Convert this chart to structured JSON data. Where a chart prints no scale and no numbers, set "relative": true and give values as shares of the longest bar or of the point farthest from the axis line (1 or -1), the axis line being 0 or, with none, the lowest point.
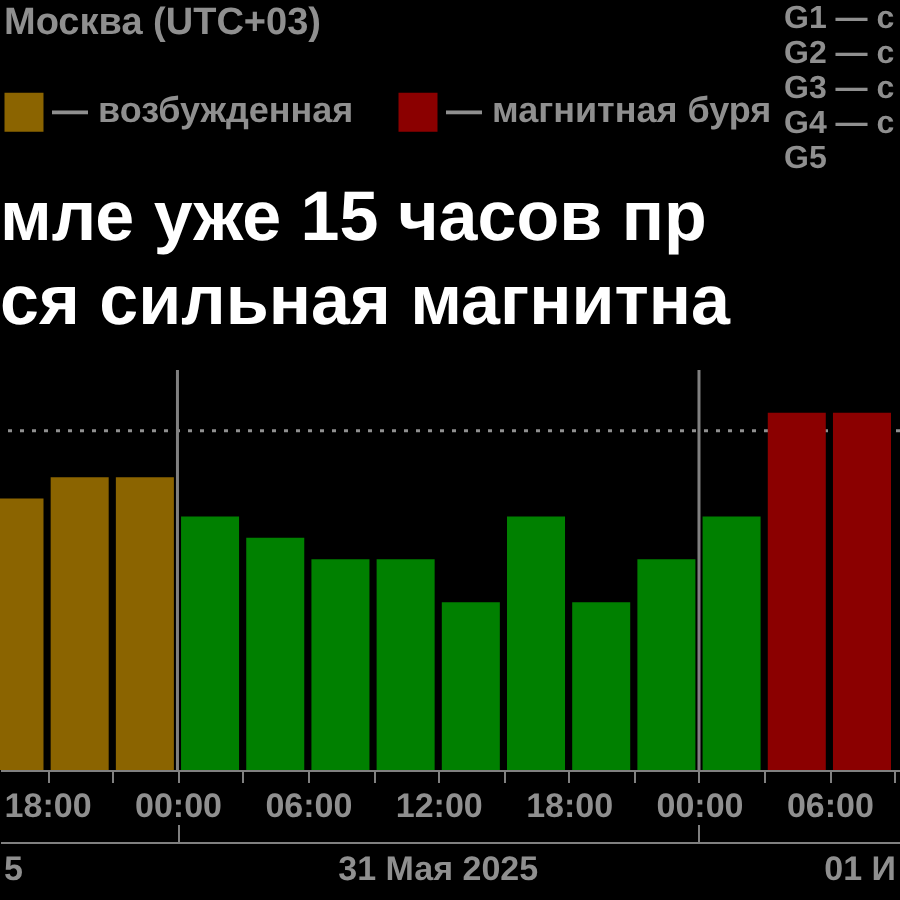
{
  "chart_data": {
    "type": "bar",
    "title": "мле уже 15 часов пр\nся сильная магнитна",
    "relative": true,
    "x": [
      "2025-05-30T16:30",
      "2025-05-30T19:30",
      "2025-05-30T22:30",
      "2025-05-31T01:30",
      "2025-05-31T04:30",
      "2025-05-31T07:30",
      "2025-05-31T10:30",
      "2025-05-31T13:30",
      "2025-05-31T16:30",
      "2025-05-31T19:30",
      "2025-05-31T22:30",
      "2025-06-01T01:30",
      "2025-06-01T04:30",
      "2025-06-01T07:30"
    ],
    "series": [
      {
        "name": "— возбужденная",
        "color": "#8b6400",
        "values": [
          0.76,
          0.82,
          0.82,
          null,
          null,
          null,
          null,
          null,
          null,
          null,
          null,
          null,
          null,
          null
        ]
      },
      {
        "color": "#008000",
        "values": [
          null,
          null,
          null,
          0.71,
          0.65,
          0.59,
          0.59,
          0.47,
          0.71,
          0.47,
          0.59,
          0.71,
          null,
          null
        ]
      },
      {
        "name": "— магнитная буря",
        "color": "#8b0000",
        "values": [
          null,
          null,
          null,
          null,
          null,
          null,
          null,
          null,
          null,
          null,
          null,
          null,
          1,
          1
        ]
      }
    ],
    "xlim": [
      "2025-05-30T15:50",
      "2025-06-01T09:15"
    ],
    "xticks": [
      {
        "value": "2025-05-30T18:00",
        "label": "18:00"
      },
      {
        "value": "2025-05-30T21:00",
        "label": null
      },
      {
        "value": "2025-05-31T00:00",
        "label": "00:00"
      },
      {
        "value": "2025-05-31T03:00",
        "label": null
      },
      {
        "value": "2025-05-31T06:00",
        "label": "06:00"
      },
      {
        "value": "2025-05-31T09:00",
        "label": null
      },
      {
        "value": "2025-05-31T12:00",
        "label": "12:00"
      },
      {
        "value": "2025-05-31T15:00",
        "label": null
      },
      {
        "value": "2025-05-31T18:00",
        "label": "18:00"
      },
      {
        "value": "2025-05-31T21:00",
        "label": null
      },
      {
        "value": "2025-06-01T00:00",
        "label": "00:00"
      },
      {
        "value": "2025-06-01T03:00",
        "label": null
      },
      {
        "value": "2025-06-01T06:00",
        "label": "06:00"
      },
      {
        "value": "2025-06-01T09:00",
        "label": null
      }
    ],
    "ref_lines": [
      {
        "axis": "y",
        "value": 0.95,
        "color": "#909090",
        "line_style": "dotted"
      },
      {
        "axis": "x",
        "value": "2025-05-31T00:00",
        "color": "#808080"
      },
      {
        "axis": "x",
        "value": "2025-06-01T00:00",
        "color": "#808080"
      }
    ],
    "legend": "top left",
    "annotations": [
      "Москва (UTC+03)",
      "G1 — с",
      "G2 — с",
      "G3 — с",
      "G4 — с",
      "G5",
      "5",
      "31 Мая 2025",
      "01 И"
    ]
  }
}
